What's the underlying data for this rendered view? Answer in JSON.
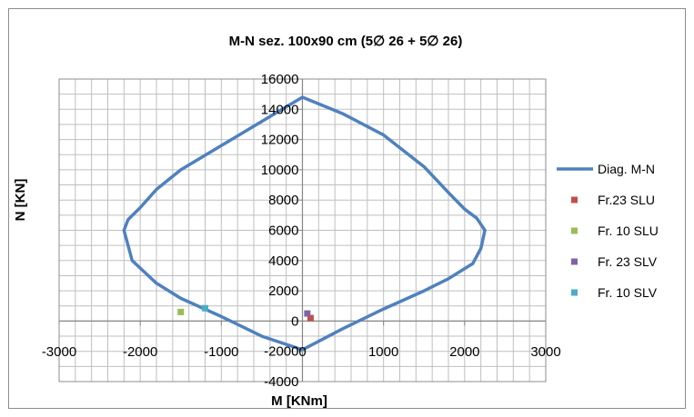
{
  "chart_data": {
    "type": "scatter",
    "title": "M-N sez. 100x90 cm  (5∅ 26 + 5∅ 26)",
    "xlabel": "M [KNm]",
    "ylabel": "N [KN]",
    "xlim": [
      -3000,
      3000
    ],
    "ylim": [
      -4000,
      16000
    ],
    "xticks": [
      -3000,
      -2000,
      -1000,
      0,
      1000,
      2000,
      3000
    ],
    "yticks": [
      -4000,
      -2000,
      0,
      2000,
      4000,
      6000,
      8000,
      10000,
      12000,
      14000,
      16000
    ],
    "x_tick_labels": [
      "-3000",
      "-2000",
      "-1000",
      "0",
      "1000",
      "2000",
      "3000"
    ],
    "y_tick_labels": [
      "-4000",
      "-2000",
      "0",
      "2000",
      "4000",
      "6000",
      "8000",
      "10000",
      "12000",
      "14000",
      "16000"
    ],
    "grid": true,
    "legend_position": "right",
    "series": [
      {
        "name": "Diag. M-N",
        "kind": "line",
        "color": "#4f81bd",
        "points": [
          [
            0,
            -1900
          ],
          [
            -500,
            -1000
          ],
          [
            -1000,
            300
          ],
          [
            -1500,
            1500
          ],
          [
            -1800,
            2500
          ],
          [
            -2000,
            3500
          ],
          [
            -2100,
            4000
          ],
          [
            -2150,
            5000
          ],
          [
            -2200,
            6000
          ],
          [
            -2150,
            6700
          ],
          [
            -2000,
            7500
          ],
          [
            -1800,
            8700
          ],
          [
            -1500,
            10000
          ],
          [
            -1000,
            11600
          ],
          [
            -500,
            13200
          ],
          [
            0,
            14800
          ],
          [
            500,
            13700
          ],
          [
            1000,
            12300
          ],
          [
            1500,
            10200
          ],
          [
            1800,
            8500
          ],
          [
            2000,
            7400
          ],
          [
            2150,
            6800
          ],
          [
            2250,
            6000
          ],
          [
            2200,
            4800
          ],
          [
            2100,
            3800
          ],
          [
            1800,
            2800
          ],
          [
            1500,
            2000
          ],
          [
            1000,
            800
          ],
          [
            500,
            -500
          ],
          [
            0,
            -1900
          ]
        ]
      },
      {
        "name": "Fr.23   SLU",
        "kind": "marker",
        "color": "#c0504d",
        "points": [
          [
            100,
            200
          ]
        ]
      },
      {
        "name": "Fr. 10  SLU",
        "kind": "marker",
        "color": "#9bbb59",
        "points": [
          [
            -1500,
            600
          ]
        ]
      },
      {
        "name": "Fr. 23  SLV",
        "kind": "marker",
        "color": "#8064a2",
        "points": [
          [
            60,
            500
          ]
        ]
      },
      {
        "name": "Fr. 10  SLV",
        "kind": "marker",
        "color": "#4bacc6",
        "points": [
          [
            -1200,
            850
          ]
        ]
      }
    ]
  }
}
